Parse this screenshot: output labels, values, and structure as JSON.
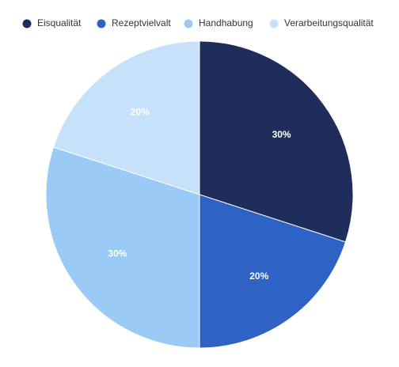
{
  "chart_data": {
    "type": "pie",
    "title": "",
    "legend_position": "top",
    "start_angle": "12 o'clock, clockwise",
    "slices": [
      {
        "name": "Eisqualität",
        "value": 30,
        "label": "30%",
        "color": "#1e2d5c"
      },
      {
        "name": "Rezeptvielvalt",
        "value": 20,
        "label": "20%",
        "color": "#2f62c5"
      },
      {
        "name": "Handhabung",
        "value": 30,
        "label": "30%",
        "color": "#99cbf6"
      },
      {
        "name": "Verarbeitungsqualität",
        "value": 20,
        "label": "20%",
        "color": "#c7e1fb"
      }
    ]
  }
}
